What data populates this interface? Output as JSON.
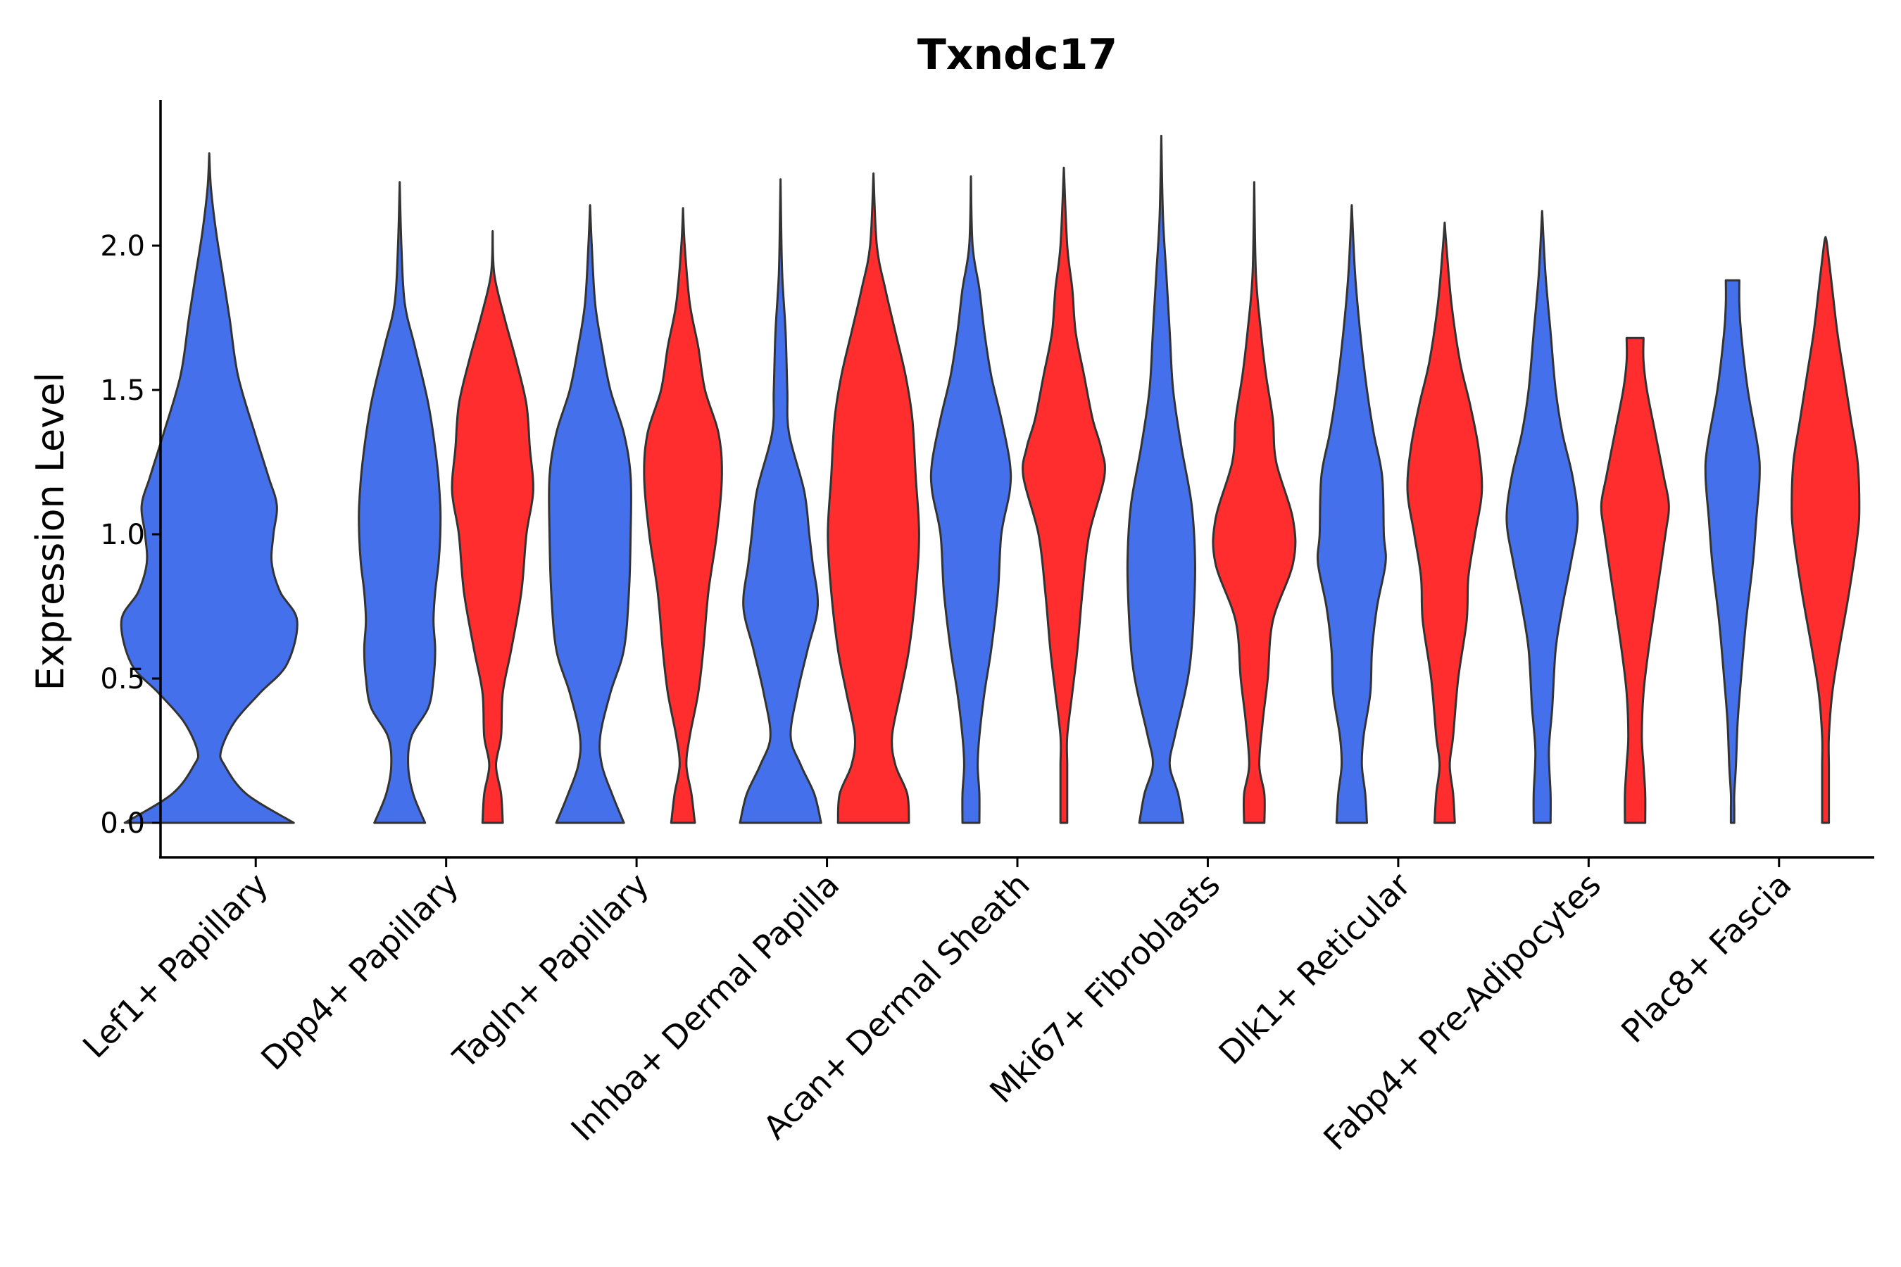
{
  "chart_data": {
    "type": "violin",
    "title": "Txndc17",
    "xlabel": "",
    "ylabel": "Expression Level",
    "ylim": [
      -0.12,
      2.5
    ],
    "yticks": [
      0.0,
      0.5,
      1.0,
      1.5,
      2.0
    ],
    "ytick_labels": [
      "0.0",
      "0.5",
      "1.0",
      "1.5",
      "2.0"
    ],
    "categories": [
      "Lef1+ Papillary",
      "Dpp4+ Papillary",
      "Tagln+ Papillary",
      "Inhba+ Dermal Papilla",
      "Acan+ Dermal Sheath",
      "Mki67+ Fibroblasts",
      "Dlk1+ Reticular",
      "Fabp4+ Pre-Adipocytes",
      "Plac8+ Fascia"
    ],
    "series_colors": {
      "blue": "#4570EB",
      "red": "#FF2D2D"
    },
    "violins": [
      {
        "category": 0,
        "group": "blue",
        "max": 2.32,
        "profile": [
          [
            0,
            0.5
          ],
          [
            0.1,
            0.22
          ],
          [
            0.2,
            0.09
          ],
          [
            0.25,
            0.07
          ],
          [
            0.35,
            0.15
          ],
          [
            0.45,
            0.3
          ],
          [
            0.55,
            0.46
          ],
          [
            0.7,
            0.52
          ],
          [
            0.8,
            0.42
          ],
          [
            0.9,
            0.37
          ],
          [
            1.0,
            0.38
          ],
          [
            1.1,
            0.4
          ],
          [
            1.2,
            0.35
          ],
          [
            1.35,
            0.27
          ],
          [
            1.55,
            0.17
          ],
          [
            1.75,
            0.12
          ],
          [
            1.9,
            0.08
          ],
          [
            2.05,
            0.04
          ],
          [
            2.2,
            0.01
          ],
          [
            2.32,
            0
          ]
        ]
      },
      {
        "category": 1,
        "group": "blue",
        "max": 2.22,
        "profile": [
          [
            0,
            0.15
          ],
          [
            0.1,
            0.08
          ],
          [
            0.2,
            0.05
          ],
          [
            0.3,
            0.07
          ],
          [
            0.4,
            0.17
          ],
          [
            0.5,
            0.2
          ],
          [
            0.6,
            0.21
          ],
          [
            0.7,
            0.2
          ],
          [
            0.8,
            0.21
          ],
          [
            0.9,
            0.23
          ],
          [
            1.0,
            0.24
          ],
          [
            1.1,
            0.24
          ],
          [
            1.25,
            0.22
          ],
          [
            1.45,
            0.17
          ],
          [
            1.65,
            0.09
          ],
          [
            1.8,
            0.03
          ],
          [
            2.0,
            0.01
          ],
          [
            2.22,
            0
          ]
        ]
      },
      {
        "category": 1,
        "group": "red",
        "max": 2.05,
        "profile": [
          [
            0,
            0.06
          ],
          [
            0.1,
            0.05
          ],
          [
            0.2,
            0.02
          ],
          [
            0.3,
            0.05
          ],
          [
            0.45,
            0.06
          ],
          [
            0.6,
            0.11
          ],
          [
            0.8,
            0.17
          ],
          [
            1.0,
            0.2
          ],
          [
            1.15,
            0.24
          ],
          [
            1.3,
            0.22
          ],
          [
            1.45,
            0.2
          ],
          [
            1.6,
            0.14
          ],
          [
            1.75,
            0.07
          ],
          [
            1.9,
            0.01
          ],
          [
            2.05,
            0
          ]
        ]
      },
      {
        "category": 2,
        "group": "blue",
        "max": 2.14,
        "profile": [
          [
            0,
            0.2
          ],
          [
            0.1,
            0.13
          ],
          [
            0.2,
            0.07
          ],
          [
            0.3,
            0.06
          ],
          [
            0.45,
            0.12
          ],
          [
            0.6,
            0.2
          ],
          [
            0.8,
            0.23
          ],
          [
            1.0,
            0.24
          ],
          [
            1.2,
            0.24
          ],
          [
            1.35,
            0.2
          ],
          [
            1.5,
            0.12
          ],
          [
            1.65,
            0.07
          ],
          [
            1.8,
            0.03
          ],
          [
            2.0,
            0.01
          ],
          [
            2.14,
            0
          ]
        ]
      },
      {
        "category": 2,
        "group": "red",
        "max": 2.13,
        "profile": [
          [
            0,
            0.07
          ],
          [
            0.1,
            0.05
          ],
          [
            0.2,
            0.02
          ],
          [
            0.3,
            0.04
          ],
          [
            0.45,
            0.09
          ],
          [
            0.6,
            0.12
          ],
          [
            0.8,
            0.15
          ],
          [
            1.0,
            0.2
          ],
          [
            1.2,
            0.23
          ],
          [
            1.35,
            0.21
          ],
          [
            1.5,
            0.13
          ],
          [
            1.65,
            0.09
          ],
          [
            1.8,
            0.04
          ],
          [
            2.0,
            0.01
          ],
          [
            2.13,
            0
          ]
        ]
      },
      {
        "category": 3,
        "group": "blue",
        "max": 2.23,
        "profile": [
          [
            0,
            0.24
          ],
          [
            0.1,
            0.2
          ],
          [
            0.2,
            0.12
          ],
          [
            0.3,
            0.06
          ],
          [
            0.45,
            0.1
          ],
          [
            0.6,
            0.16
          ],
          [
            0.75,
            0.22
          ],
          [
            0.9,
            0.19
          ],
          [
            1.0,
            0.17
          ],
          [
            1.15,
            0.14
          ],
          [
            1.35,
            0.05
          ],
          [
            1.5,
            0.04
          ],
          [
            1.7,
            0.03
          ],
          [
            1.9,
            0.01
          ],
          [
            2.1,
            0.003
          ],
          [
            2.23,
            0
          ]
        ]
      },
      {
        "category": 3,
        "group": "red",
        "max": 2.25,
        "profile": [
          [
            0,
            0.21
          ],
          [
            0.1,
            0.2
          ],
          [
            0.2,
            0.13
          ],
          [
            0.3,
            0.11
          ],
          [
            0.45,
            0.16
          ],
          [
            0.6,
            0.21
          ],
          [
            0.8,
            0.25
          ],
          [
            1.0,
            0.27
          ],
          [
            1.2,
            0.25
          ],
          [
            1.4,
            0.23
          ],
          [
            1.55,
            0.19
          ],
          [
            1.7,
            0.13
          ],
          [
            1.85,
            0.07
          ],
          [
            2.0,
            0.02
          ],
          [
            2.25,
            0
          ]
        ]
      },
      {
        "category": 4,
        "group": "blue",
        "max": 2.24,
        "profile": [
          [
            0,
            0.05
          ],
          [
            0.1,
            0.05
          ],
          [
            0.2,
            0.04
          ],
          [
            0.3,
            0.05
          ],
          [
            0.45,
            0.08
          ],
          [
            0.6,
            0.12
          ],
          [
            0.8,
            0.16
          ],
          [
            1.0,
            0.18
          ],
          [
            1.15,
            0.23
          ],
          [
            1.25,
            0.23
          ],
          [
            1.4,
            0.18
          ],
          [
            1.55,
            0.12
          ],
          [
            1.7,
            0.08
          ],
          [
            1.85,
            0.05
          ],
          [
            2.0,
            0.01
          ],
          [
            2.24,
            0
          ]
        ]
      },
      {
        "category": 4,
        "group": "red",
        "max": 2.27,
        "profile": [
          [
            0,
            0.02
          ],
          [
            0.1,
            0.02
          ],
          [
            0.2,
            0.02
          ],
          [
            0.3,
            0.02
          ],
          [
            0.45,
            0.05
          ],
          [
            0.6,
            0.08
          ],
          [
            0.8,
            0.11
          ],
          [
            1.0,
            0.15
          ],
          [
            1.2,
            0.24
          ],
          [
            1.3,
            0.22
          ],
          [
            1.4,
            0.17
          ],
          [
            1.55,
            0.12
          ],
          [
            1.7,
            0.07
          ],
          [
            1.85,
            0.05
          ],
          [
            2.0,
            0.02
          ],
          [
            2.27,
            0
          ]
        ]
      },
      {
        "category": 5,
        "group": "blue",
        "max": 2.38,
        "profile": [
          [
            0,
            0.13
          ],
          [
            0.1,
            0.1
          ],
          [
            0.2,
            0.05
          ],
          [
            0.3,
            0.08
          ],
          [
            0.45,
            0.14
          ],
          [
            0.55,
            0.17
          ],
          [
            0.7,
            0.19
          ],
          [
            0.9,
            0.2
          ],
          [
            1.1,
            0.18
          ],
          [
            1.3,
            0.12
          ],
          [
            1.5,
            0.07
          ],
          [
            1.7,
            0.05
          ],
          [
            1.9,
            0.03
          ],
          [
            2.1,
            0.01
          ],
          [
            2.38,
            0
          ]
        ]
      },
      {
        "category": 5,
        "group": "red",
        "max": 2.22,
        "profile": [
          [
            0,
            0.06
          ],
          [
            0.1,
            0.06
          ],
          [
            0.2,
            0.03
          ],
          [
            0.35,
            0.05
          ],
          [
            0.5,
            0.08
          ],
          [
            0.7,
            0.11
          ],
          [
            0.9,
            0.23
          ],
          [
            1.05,
            0.23
          ],
          [
            1.25,
            0.13
          ],
          [
            1.4,
            0.11
          ],
          [
            1.55,
            0.07
          ],
          [
            1.7,
            0.04
          ],
          [
            1.9,
            0.01
          ],
          [
            2.22,
            0
          ]
        ]
      },
      {
        "category": 6,
        "group": "blue",
        "max": 2.14,
        "profile": [
          [
            0,
            0.09
          ],
          [
            0.1,
            0.08
          ],
          [
            0.2,
            0.06
          ],
          [
            0.3,
            0.07
          ],
          [
            0.45,
            0.11
          ],
          [
            0.6,
            0.12
          ],
          [
            0.75,
            0.15
          ],
          [
            0.9,
            0.2
          ],
          [
            1.0,
            0.19
          ],
          [
            1.2,
            0.18
          ],
          [
            1.35,
            0.13
          ],
          [
            1.5,
            0.09
          ],
          [
            1.7,
            0.05
          ],
          [
            1.9,
            0.02
          ],
          [
            2.14,
            0
          ]
        ]
      },
      {
        "category": 6,
        "group": "red",
        "max": 2.08,
        "profile": [
          [
            0,
            0.06
          ],
          [
            0.1,
            0.05
          ],
          [
            0.2,
            0.03
          ],
          [
            0.3,
            0.05
          ],
          [
            0.5,
            0.08
          ],
          [
            0.7,
            0.13
          ],
          [
            0.85,
            0.14
          ],
          [
            1.0,
            0.18
          ],
          [
            1.15,
            0.22
          ],
          [
            1.3,
            0.2
          ],
          [
            1.45,
            0.15
          ],
          [
            1.6,
            0.09
          ],
          [
            1.8,
            0.04
          ],
          [
            2.0,
            0.01
          ],
          [
            2.08,
            0
          ]
        ]
      },
      {
        "category": 7,
        "group": "blue",
        "max": 2.12,
        "profile": [
          [
            0,
            0.05
          ],
          [
            0.1,
            0.05
          ],
          [
            0.25,
            0.04
          ],
          [
            0.4,
            0.06
          ],
          [
            0.6,
            0.08
          ],
          [
            0.75,
            0.12
          ],
          [
            0.9,
            0.17
          ],
          [
            1.05,
            0.21
          ],
          [
            1.2,
            0.18
          ],
          [
            1.35,
            0.12
          ],
          [
            1.5,
            0.08
          ],
          [
            1.7,
            0.05
          ],
          [
            1.9,
            0.02
          ],
          [
            2.12,
            0
          ]
        ]
      },
      {
        "category": 7,
        "group": "red",
        "max": 1.68,
        "profile": [
          [
            0,
            0.06
          ],
          [
            0.1,
            0.06
          ],
          [
            0.2,
            0.05
          ],
          [
            0.3,
            0.04
          ],
          [
            0.45,
            0.05
          ],
          [
            0.6,
            0.08
          ],
          [
            0.8,
            0.13
          ],
          [
            1.0,
            0.18
          ],
          [
            1.1,
            0.2
          ],
          [
            1.2,
            0.17
          ],
          [
            1.35,
            0.12
          ],
          [
            1.5,
            0.07
          ],
          [
            1.6,
            0.05
          ],
          [
            1.68,
            0.05
          ]
        ]
      },
      {
        "category": 8,
        "group": "blue",
        "max": 1.88,
        "profile": [
          [
            0,
            0.01
          ],
          [
            0.05,
            0.01
          ],
          [
            0.1,
            0.01
          ],
          [
            0.2,
            0.02
          ],
          [
            0.35,
            0.03
          ],
          [
            0.5,
            0.05
          ],
          [
            0.7,
            0.08
          ],
          [
            0.9,
            0.12
          ],
          [
            1.05,
            0.14
          ],
          [
            1.2,
            0.16
          ],
          [
            1.3,
            0.15
          ],
          [
            1.5,
            0.09
          ],
          [
            1.7,
            0.05
          ],
          [
            1.8,
            0.04
          ],
          [
            1.88,
            0.04
          ]
        ]
      },
      {
        "category": 8,
        "group": "red",
        "max": 2.03,
        "profile": [
          [
            0,
            0.02
          ],
          [
            0.1,
            0.02
          ],
          [
            0.2,
            0.02
          ],
          [
            0.3,
            0.02
          ],
          [
            0.45,
            0.04
          ],
          [
            0.6,
            0.08
          ],
          [
            0.8,
            0.14
          ],
          [
            1.0,
            0.19
          ],
          [
            1.1,
            0.2
          ],
          [
            1.25,
            0.19
          ],
          [
            1.4,
            0.15
          ],
          [
            1.55,
            0.11
          ],
          [
            1.7,
            0.07
          ],
          [
            1.85,
            0.04
          ],
          [
            2.0,
            0.01
          ],
          [
            2.03,
            0
          ]
        ]
      }
    ]
  }
}
